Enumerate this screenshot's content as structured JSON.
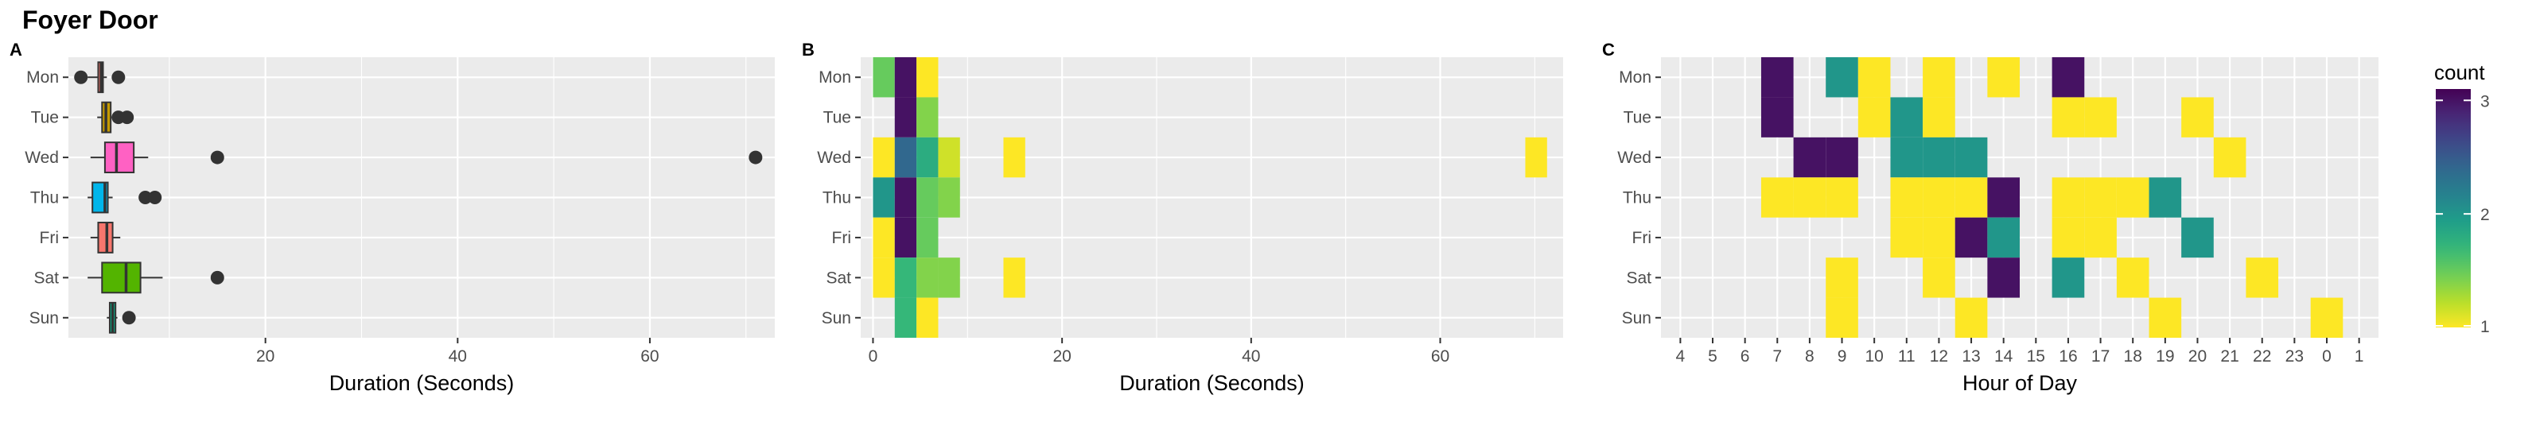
{
  "title": "Foyer Door",
  "days": [
    "Mon",
    "Tue",
    "Wed",
    "Thu",
    "Fri",
    "Sat",
    "Sun"
  ],
  "chart_data": [
    {
      "panel": "A",
      "type": "boxplot",
      "xlabel": "Duration (Seconds)",
      "xticks": [
        20,
        40,
        60
      ],
      "xlim": [
        -0.5,
        73
      ],
      "colors": {
        "Mon": "#f8766d",
        "Tue": "#c49a00",
        "Wed": "#ff61c3",
        "Thu": "#00b6eb",
        "Fri": "#f8766d",
        "Sat": "#53b400",
        "Sun": "#00c094"
      },
      "boxes": [
        {
          "day": "Mon",
          "min": 1.5,
          "q1": 2.6,
          "median": 2.9,
          "q3": 3.1,
          "max": 3.5,
          "color": "#f8766d",
          "outliers": [
            0.8,
            4.7
          ]
        },
        {
          "day": "Tue",
          "min": 2.5,
          "q1": 3.0,
          "median": 3.4,
          "q3": 3.9,
          "max": 4.0,
          "color": "#c49a00",
          "outliers": [
            4.7,
            5.6
          ]
        },
        {
          "day": "Wed",
          "min": 1.8,
          "q1": 3.3,
          "median": 4.5,
          "q3": 6.3,
          "max": 7.8,
          "color": "#ff61c3",
          "outliers": [
            15.0,
            71.0
          ]
        },
        {
          "day": "Thu",
          "min": 1.5,
          "q1": 2.0,
          "median": 3.3,
          "q3": 3.6,
          "max": 4.1,
          "color": "#00b6eb",
          "outliers": [
            7.5,
            8.5
          ]
        },
        {
          "day": "Fri",
          "min": 1.8,
          "q1": 2.6,
          "median": 3.5,
          "q3": 4.1,
          "max": 4.9,
          "color": "#f8766d",
          "outliers": []
        },
        {
          "day": "Sat",
          "min": 1.5,
          "q1": 3.0,
          "median": 5.5,
          "q3": 7.0,
          "max": 9.3,
          "color": "#53b400",
          "outliers": [
            15.0
          ]
        },
        {
          "day": "Sun",
          "min": 3.5,
          "q1": 3.8,
          "median": 4.1,
          "q3": 4.4,
          "max": 4.6,
          "color": "#00c094",
          "outliers": [
            5.8
          ]
        }
      ]
    },
    {
      "panel": "B",
      "type": "heatmap",
      "xlabel": "Duration (Seconds)",
      "xticks": [
        0,
        20,
        40,
        60
      ],
      "xlim": [
        -1.3,
        73
      ],
      "binwidth": 2.3,
      "cells": [
        {
          "day": "Mon",
          "x": 1.15,
          "count": 1.5
        },
        {
          "day": "Mon",
          "x": 3.45,
          "count": 3
        },
        {
          "day": "Mon",
          "x": 5.75,
          "count": 1
        },
        {
          "day": "Tue",
          "x": 3.45,
          "count": 3
        },
        {
          "day": "Tue",
          "x": 5.75,
          "count": 1.4
        },
        {
          "day": "Wed",
          "x": 1.15,
          "count": 1
        },
        {
          "day": "Wed",
          "x": 3.45,
          "count": 2.4
        },
        {
          "day": "Wed",
          "x": 5.75,
          "count": 1.8
        },
        {
          "day": "Wed",
          "x": 8.05,
          "count": 1.15
        },
        {
          "day": "Wed",
          "x": 14.95,
          "count": 1
        },
        {
          "day": "Wed",
          "x": 70.15,
          "count": 1
        },
        {
          "day": "Thu",
          "x": 1.15,
          "count": 2
        },
        {
          "day": "Thu",
          "x": 3.45,
          "count": 3
        },
        {
          "day": "Thu",
          "x": 5.75,
          "count": 1.5
        },
        {
          "day": "Thu",
          "x": 8.05,
          "count": 1.4
        },
        {
          "day": "Fri",
          "x": 1.15,
          "count": 1
        },
        {
          "day": "Fri",
          "x": 3.45,
          "count": 3
        },
        {
          "day": "Fri",
          "x": 5.75,
          "count": 1.5
        },
        {
          "day": "Sat",
          "x": 1.15,
          "count": 1
        },
        {
          "day": "Sat",
          "x": 3.45,
          "count": 1.7
        },
        {
          "day": "Sat",
          "x": 5.75,
          "count": 1.4
        },
        {
          "day": "Sat",
          "x": 8.05,
          "count": 1.4
        },
        {
          "day": "Sat",
          "x": 14.95,
          "count": 1
        },
        {
          "day": "Sun",
          "x": 3.45,
          "count": 1.7
        },
        {
          "day": "Sun",
          "x": 5.75,
          "count": 1
        }
      ]
    },
    {
      "panel": "C",
      "type": "heatmap",
      "xlabel": "Hour of Day",
      "hours": [
        "4",
        "5",
        "6",
        "7",
        "8",
        "9",
        "10",
        "11",
        "12",
        "13",
        "14",
        "15",
        "16",
        "17",
        "18",
        "19",
        "20",
        "21",
        "22",
        "23",
        "0",
        "1"
      ],
      "cells": [
        {
          "day": "Mon",
          "hour": "7",
          "count": 3
        },
        {
          "day": "Mon",
          "hour": "9",
          "count": 2
        },
        {
          "day": "Mon",
          "hour": "10",
          "count": 1
        },
        {
          "day": "Mon",
          "hour": "12",
          "count": 1
        },
        {
          "day": "Mon",
          "hour": "14",
          "count": 1
        },
        {
          "day": "Mon",
          "hour": "16",
          "count": 3
        },
        {
          "day": "Tue",
          "hour": "7",
          "count": 3
        },
        {
          "day": "Tue",
          "hour": "10",
          "count": 1
        },
        {
          "day": "Tue",
          "hour": "11",
          "count": 2
        },
        {
          "day": "Tue",
          "hour": "12",
          "count": 1
        },
        {
          "day": "Tue",
          "hour": "16",
          "count": 1
        },
        {
          "day": "Tue",
          "hour": "17",
          "count": 1
        },
        {
          "day": "Tue",
          "hour": "20",
          "count": 1
        },
        {
          "day": "Wed",
          "hour": "8",
          "count": 3
        },
        {
          "day": "Wed",
          "hour": "9",
          "count": 3
        },
        {
          "day": "Wed",
          "hour": "11",
          "count": 2
        },
        {
          "day": "Wed",
          "hour": "12",
          "count": 2
        },
        {
          "day": "Wed",
          "hour": "13",
          "count": 2
        },
        {
          "day": "Wed",
          "hour": "21",
          "count": 1
        },
        {
          "day": "Thu",
          "hour": "7",
          "count": 1
        },
        {
          "day": "Thu",
          "hour": "8",
          "count": 1
        },
        {
          "day": "Thu",
          "hour": "9",
          "count": 1
        },
        {
          "day": "Thu",
          "hour": "11",
          "count": 1
        },
        {
          "day": "Thu",
          "hour": "12",
          "count": 1
        },
        {
          "day": "Thu",
          "hour": "13",
          "count": 1
        },
        {
          "day": "Thu",
          "hour": "14",
          "count": 3
        },
        {
          "day": "Thu",
          "hour": "16",
          "count": 1
        },
        {
          "day": "Thu",
          "hour": "17",
          "count": 1
        },
        {
          "day": "Thu",
          "hour": "18",
          "count": 1
        },
        {
          "day": "Thu",
          "hour": "19",
          "count": 2
        },
        {
          "day": "Fri",
          "hour": "11",
          "count": 1
        },
        {
          "day": "Fri",
          "hour": "12",
          "count": 1
        },
        {
          "day": "Fri",
          "hour": "13",
          "count": 3
        },
        {
          "day": "Fri",
          "hour": "14",
          "count": 2
        },
        {
          "day": "Fri",
          "hour": "16",
          "count": 1
        },
        {
          "day": "Fri",
          "hour": "17",
          "count": 1
        },
        {
          "day": "Fri",
          "hour": "20",
          "count": 2
        },
        {
          "day": "Sat",
          "hour": "9",
          "count": 1
        },
        {
          "day": "Sat",
          "hour": "12",
          "count": 1
        },
        {
          "day": "Sat",
          "hour": "14",
          "count": 3
        },
        {
          "day": "Sat",
          "hour": "16",
          "count": 2
        },
        {
          "day": "Sat",
          "hour": "18",
          "count": 1
        },
        {
          "day": "Sat",
          "hour": "22",
          "count": 1
        },
        {
          "day": "Sun",
          "hour": "9",
          "count": 1
        },
        {
          "day": "Sun",
          "hour": "13",
          "count": 1
        },
        {
          "day": "Sun",
          "hour": "19",
          "count": 1
        },
        {
          "day": "Sun",
          "hour": "0",
          "count": 1
        }
      ]
    }
  ],
  "legend": {
    "title": "count",
    "breaks": [
      1,
      2,
      3
    ],
    "range": [
      1,
      3.1
    ],
    "placement": "right"
  }
}
